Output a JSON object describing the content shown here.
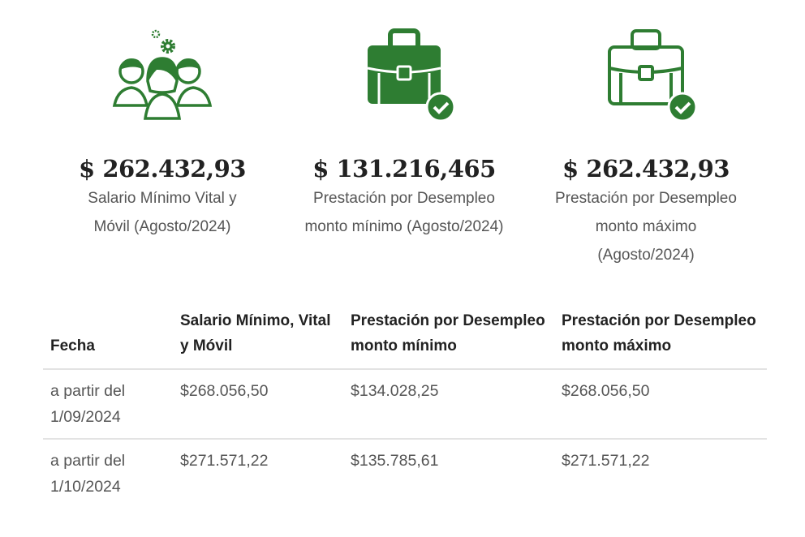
{
  "accent": "#2e7d32",
  "cards": [
    {
      "icon": "people-gear-icon",
      "amount": "$ 262.432,93",
      "desc": "Salario Mínimo Vital y Móvil (Agosto/2024)"
    },
    {
      "icon": "briefcase-check-filled-icon",
      "amount": "$ 131.216,465",
      "desc": "Prestación por Desempleo monto mínimo (Agosto/2024)"
    },
    {
      "icon": "briefcase-check-outline-icon",
      "amount": "$ 262.432,93",
      "desc": "Prestación por Desempleo monto máximo (Agosto/2024)"
    }
  ],
  "table": {
    "headers": [
      "Fecha",
      "Salario Mínimo, Vital y Móvil",
      "Prestación por Desempleo monto mínimo",
      "Prestación por Desempleo monto máximo"
    ],
    "rows": [
      [
        "a partir del 1/09/2024",
        "$268.056,50",
        "$134.028,25",
        "$268.056,50"
      ],
      [
        "a partir del 1/10/2024",
        "$271.571,22",
        "$135.785,61",
        "$271.571,22"
      ]
    ]
  }
}
